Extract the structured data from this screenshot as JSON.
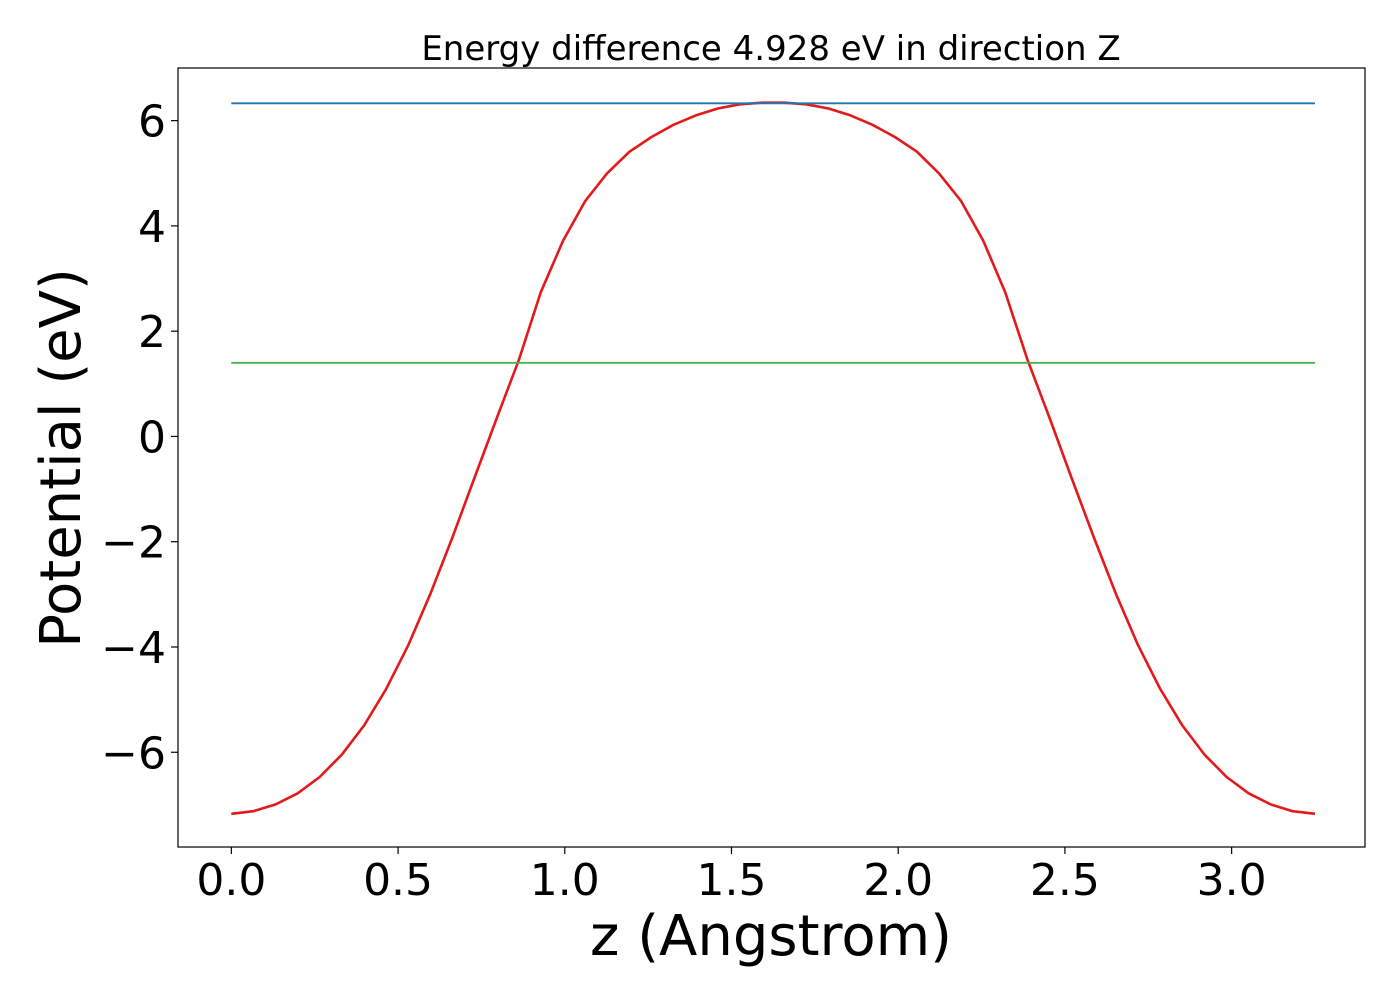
{
  "chart_data": {
    "type": "line",
    "title": "Energy difference 4.928 eV in direction Z",
    "xlabel": "z (Angstrom)",
    "ylabel": "Potential (eV)",
    "xlim": [
      -0.16,
      3.4
    ],
    "ylim": [
      -7.8,
      7.0
    ],
    "xticks": [
      0.0,
      0.5,
      1.0,
      1.5,
      2.0,
      2.5,
      3.0
    ],
    "xtick_labels": [
      "0.0",
      "0.5",
      "1.0",
      "1.5",
      "2.0",
      "2.5",
      "3.0"
    ],
    "yticks": [
      6,
      4,
      2,
      0,
      -2,
      -4,
      -6
    ],
    "ytick_labels": [
      "6",
      "4",
      "2",
      "0",
      "−2",
      "−4",
      "−6"
    ],
    "grid": false,
    "series": [
      {
        "role": "potential",
        "color": "#e31a1c",
        "x": [
          0.0,
          0.066,
          0.133,
          0.199,
          0.265,
          0.332,
          0.398,
          0.464,
          0.531,
          0.597,
          0.663,
          0.729,
          0.796,
          0.862,
          0.928,
          0.995,
          1.061,
          1.127,
          1.194,
          1.26,
          1.326,
          1.393,
          1.459,
          1.525,
          1.592,
          1.658,
          1.724,
          1.791,
          1.857,
          1.923,
          1.99,
          2.056,
          2.122,
          2.189,
          2.255,
          2.321,
          2.388,
          2.454,
          2.52,
          2.587,
          2.653,
          2.719,
          2.786,
          2.852,
          2.918,
          2.985,
          3.051,
          3.117,
          3.183,
          3.25
        ],
        "y": [
          -7.17,
          -7.12,
          -6.99,
          -6.78,
          -6.47,
          -6.04,
          -5.49,
          -4.8,
          -3.96,
          -2.99,
          -1.92,
          -0.79,
          0.35,
          1.45,
          2.74,
          3.72,
          4.47,
          5.0,
          5.41,
          5.69,
          5.92,
          6.1,
          6.23,
          6.31,
          6.34,
          6.34,
          6.31,
          6.23,
          6.1,
          5.92,
          5.69,
          5.41,
          5.0,
          4.47,
          3.72,
          2.74,
          1.45,
          0.35,
          -0.79,
          -1.92,
          -2.99,
          -3.96,
          -4.8,
          -5.49,
          -6.04,
          -6.47,
          -6.78,
          -6.99,
          -7.12,
          -7.17
        ]
      },
      {
        "role": "maximum",
        "color": "#1f77b4",
        "x": [
          0.0,
          3.25
        ],
        "y": [
          6.33,
          6.33
        ]
      },
      {
        "role": "average",
        "color": "#4daf4a",
        "x": [
          0.0,
          3.25
        ],
        "y": [
          1.4,
          1.4
        ]
      }
    ]
  }
}
